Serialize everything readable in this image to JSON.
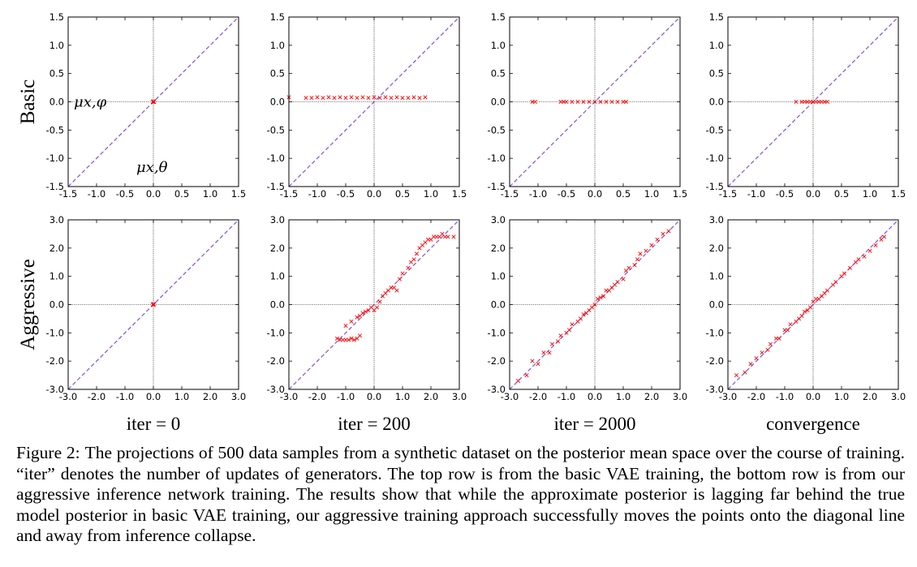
{
  "figure": {
    "row_labels": [
      "Basic",
      "Aggressive"
    ],
    "col_labels": [
      "iter = 0",
      "iter = 200",
      "iter = 2000",
      "convergence"
    ],
    "annotations": {
      "y_axis_symbol": "μx,φ",
      "x_axis_symbol": "μx,θ"
    },
    "colors": {
      "points": "#ff0000",
      "diagonal": "#8a5fd6",
      "axes": "#000000"
    }
  },
  "chart_data": [
    {
      "type": "scatter",
      "row": "Basic",
      "title": "iter = 0",
      "xlim": [
        -1.5,
        1.5
      ],
      "ylim": [
        -1.5,
        1.5
      ],
      "xticks": [
        "-1.5",
        "-1.0",
        "-0.5",
        "0.0",
        "0.5",
        "1.0",
        "1.5"
      ],
      "yticks": [
        "-1.5",
        "-1.0",
        "-0.5",
        "0.0",
        "0.5",
        "1.0",
        "1.5"
      ],
      "xlabel": "μx,θ",
      "ylabel": "μx,φ",
      "diagonal": [
        [
          -1.5,
          -1.5
        ],
        [
          1.5,
          1.5
        ]
      ],
      "points": [
        [
          0.0,
          0.0
        ],
        [
          0.01,
          0.0
        ],
        [
          -0.01,
          0.0
        ],
        [
          0.0,
          0.01
        ],
        [
          0.005,
          -0.005
        ]
      ]
    },
    {
      "type": "scatter",
      "row": "Basic",
      "title": "iter = 200",
      "xlim": [
        -1.5,
        1.5
      ],
      "ylim": [
        -1.5,
        1.5
      ],
      "xticks": [
        "-1.5",
        "-1.0",
        "-0.5",
        "0.0",
        "0.5",
        "1.0",
        "1.5"
      ],
      "yticks": [
        "-1.5",
        "-1.0",
        "-0.5",
        "0.0",
        "0.5",
        "1.0",
        "1.5"
      ],
      "diagonal": [
        [
          -1.5,
          -1.5
        ],
        [
          1.5,
          1.5
        ]
      ],
      "points": [
        [
          -1.5,
          0.08
        ],
        [
          -1.2,
          0.07
        ],
        [
          -1.1,
          0.07
        ],
        [
          -1.0,
          0.08
        ],
        [
          -0.9,
          0.07
        ],
        [
          -0.8,
          0.08
        ],
        [
          -0.7,
          0.07
        ],
        [
          -0.6,
          0.08
        ],
        [
          -0.5,
          0.07
        ],
        [
          -0.4,
          0.08
        ],
        [
          -0.3,
          0.07
        ],
        [
          -0.2,
          0.08
        ],
        [
          -0.1,
          0.07
        ],
        [
          0.0,
          0.08
        ],
        [
          0.1,
          0.07
        ],
        [
          0.2,
          0.08
        ],
        [
          0.3,
          0.07
        ],
        [
          0.4,
          0.08
        ],
        [
          0.5,
          0.07
        ],
        [
          0.6,
          0.07
        ],
        [
          0.7,
          0.08
        ],
        [
          0.8,
          0.07
        ],
        [
          0.9,
          0.08
        ]
      ]
    },
    {
      "type": "scatter",
      "row": "Basic",
      "title": "iter = 2000",
      "xlim": [
        -1.5,
        1.5
      ],
      "ylim": [
        -1.5,
        1.5
      ],
      "xticks": [
        "-1.5",
        "-1.0",
        "-0.5",
        "0.0",
        "0.5",
        "1.0",
        "1.5"
      ],
      "yticks": [
        "-1.5",
        "-1.0",
        "-0.5",
        "0.0",
        "0.5",
        "1.0",
        "1.5"
      ],
      "diagonal": [
        [
          -1.5,
          -1.5
        ],
        [
          1.5,
          1.5
        ]
      ],
      "points": [
        [
          -1.1,
          0.0
        ],
        [
          -1.05,
          0.0
        ],
        [
          -0.6,
          0.0
        ],
        [
          -0.55,
          0.0
        ],
        [
          -0.5,
          0.0
        ],
        [
          -0.4,
          0.0
        ],
        [
          -0.3,
          0.0
        ],
        [
          -0.2,
          0.0
        ],
        [
          -0.1,
          0.0
        ],
        [
          0.0,
          0.0
        ],
        [
          0.1,
          0.0
        ],
        [
          0.2,
          0.0
        ],
        [
          0.3,
          0.0
        ],
        [
          0.4,
          0.0
        ],
        [
          0.5,
          0.0
        ],
        [
          0.55,
          0.0
        ]
      ]
    },
    {
      "type": "scatter",
      "row": "Basic",
      "title": "convergence",
      "xlim": [
        -1.5,
        1.5
      ],
      "ylim": [
        -1.5,
        1.5
      ],
      "xticks": [
        "-1.5",
        "-1.0",
        "-0.5",
        "0.0",
        "0.5",
        "1.0",
        "1.5"
      ],
      "yticks": [
        "-1.5",
        "-1.0",
        "-0.5",
        "0.0",
        "0.5",
        "1.0",
        "1.5"
      ],
      "diagonal": [
        [
          -1.5,
          -1.5
        ],
        [
          1.5,
          1.5
        ]
      ],
      "points": [
        [
          -0.3,
          0.0
        ],
        [
          -0.2,
          0.0
        ],
        [
          -0.15,
          0.0
        ],
        [
          -0.1,
          0.0
        ],
        [
          -0.05,
          0.0
        ],
        [
          0.0,
          0.0
        ],
        [
          0.05,
          0.0
        ],
        [
          0.1,
          0.0
        ],
        [
          0.15,
          0.0
        ],
        [
          0.2,
          0.0
        ],
        [
          0.25,
          0.0
        ]
      ]
    },
    {
      "type": "scatter",
      "row": "Aggressive",
      "title": "iter = 0",
      "xlim": [
        -3.0,
        3.0
      ],
      "ylim": [
        -3.0,
        3.0
      ],
      "xticks": [
        "-3.0",
        "-2.0",
        "-1.0",
        "0.0",
        "1.0",
        "2.0",
        "3.0"
      ],
      "yticks": [
        "-3.0",
        "-2.0",
        "-1.0",
        "0.0",
        "1.0",
        "2.0",
        "3.0"
      ],
      "diagonal": [
        [
          -3.0,
          -3.0
        ],
        [
          3.0,
          3.0
        ]
      ],
      "points": [
        [
          0.0,
          0.0
        ],
        [
          0.02,
          0.0
        ],
        [
          -0.02,
          0.0
        ],
        [
          0.0,
          0.02
        ]
      ]
    },
    {
      "type": "scatter",
      "row": "Aggressive",
      "title": "iter = 200",
      "xlim": [
        -3.0,
        3.0
      ],
      "ylim": [
        -3.0,
        3.0
      ],
      "xticks": [
        "-3.0",
        "-2.0",
        "-1.0",
        "0.0",
        "1.0",
        "2.0",
        "3.0"
      ],
      "yticks": [
        "-3.0",
        "-2.0",
        "-1.0",
        "0.0",
        "1.0",
        "2.0",
        "3.0"
      ],
      "diagonal": [
        [
          -3.0,
          -3.0
        ],
        [
          3.0,
          3.0
        ]
      ],
      "points": [
        [
          -1.3,
          -1.2
        ],
        [
          -1.2,
          -1.25
        ],
        [
          -1.1,
          -1.25
        ],
        [
          -1.0,
          -1.25
        ],
        [
          -0.9,
          -1.25
        ],
        [
          -0.8,
          -1.2
        ],
        [
          -0.7,
          -1.25
        ],
        [
          -0.6,
          -1.2
        ],
        [
          -0.5,
          -1.1
        ],
        [
          -1.0,
          -0.75
        ],
        [
          -0.8,
          -0.6
        ],
        [
          -0.6,
          -0.45
        ],
        [
          -0.5,
          -0.4
        ],
        [
          -0.4,
          -0.3
        ],
        [
          -0.3,
          -0.25
        ],
        [
          -0.2,
          -0.2
        ],
        [
          -0.1,
          -0.1
        ],
        [
          0.0,
          -0.2
        ],
        [
          0.1,
          -0.1
        ],
        [
          0.2,
          0.1
        ],
        [
          0.3,
          0.3
        ],
        [
          0.4,
          0.4
        ],
        [
          0.5,
          0.5
        ],
        [
          0.6,
          0.6
        ],
        [
          0.7,
          0.6
        ],
        [
          0.8,
          0.5
        ],
        [
          0.9,
          0.9
        ],
        [
          1.0,
          1.1
        ],
        [
          1.2,
          1.3
        ],
        [
          1.3,
          1.5
        ],
        [
          1.4,
          1.6
        ],
        [
          1.5,
          1.8
        ],
        [
          1.6,
          2.0
        ],
        [
          1.7,
          2.1
        ],
        [
          1.8,
          2.2
        ],
        [
          1.9,
          2.3
        ],
        [
          2.0,
          2.3
        ],
        [
          2.1,
          2.4
        ],
        [
          2.2,
          2.4
        ],
        [
          2.3,
          2.4
        ],
        [
          2.4,
          2.5
        ],
        [
          2.5,
          2.4
        ],
        [
          2.6,
          2.4
        ],
        [
          2.8,
          2.4
        ]
      ]
    },
    {
      "type": "scatter",
      "row": "Aggressive",
      "title": "iter = 2000",
      "xlim": [
        -3.0,
        3.0
      ],
      "ylim": [
        -3.0,
        3.0
      ],
      "xticks": [
        "-3.0",
        "-2.0",
        "-1.0",
        "0.0",
        "1.0",
        "2.0",
        "3.0"
      ],
      "yticks": [
        "-3.0",
        "-2.0",
        "-1.0",
        "0.0",
        "1.0",
        "2.0",
        "3.0"
      ],
      "diagonal": [
        [
          -3.0,
          -3.0
        ],
        [
          3.0,
          3.0
        ]
      ],
      "points": [
        [
          -2.7,
          -2.7
        ],
        [
          -2.4,
          -2.5
        ],
        [
          -2.2,
          -2.0
        ],
        [
          -2.0,
          -2.1
        ],
        [
          -1.8,
          -1.7
        ],
        [
          -1.6,
          -1.7
        ],
        [
          -1.5,
          -1.4
        ],
        [
          -1.3,
          -1.3
        ],
        [
          -1.2,
          -1.1
        ],
        [
          -1.0,
          -1.0
        ],
        [
          -0.9,
          -0.9
        ],
        [
          -0.8,
          -0.7
        ],
        [
          -0.6,
          -0.6
        ],
        [
          -0.5,
          -0.5
        ],
        [
          -0.4,
          -0.35
        ],
        [
          -0.3,
          -0.3
        ],
        [
          -0.2,
          -0.2
        ],
        [
          -0.1,
          -0.1
        ],
        [
          0.0,
          0.0
        ],
        [
          0.1,
          0.2
        ],
        [
          0.2,
          0.25
        ],
        [
          0.3,
          0.3
        ],
        [
          0.4,
          0.5
        ],
        [
          0.5,
          0.5
        ],
        [
          0.6,
          0.6
        ],
        [
          0.7,
          0.7
        ],
        [
          0.8,
          0.8
        ],
        [
          1.0,
          0.9
        ],
        [
          1.1,
          1.2
        ],
        [
          1.2,
          1.3
        ],
        [
          1.4,
          1.4
        ],
        [
          1.5,
          1.6
        ],
        [
          1.6,
          1.8
        ],
        [
          1.8,
          1.9
        ],
        [
          2.0,
          2.1
        ],
        [
          2.2,
          2.3
        ],
        [
          2.4,
          2.5
        ],
        [
          2.6,
          2.6
        ]
      ]
    },
    {
      "type": "scatter",
      "row": "Aggressive",
      "title": "convergence",
      "xlim": [
        -3.0,
        3.0
      ],
      "ylim": [
        -3.0,
        3.0
      ],
      "xticks": [
        "-3.0",
        "-2.0",
        "-1.0",
        "0.0",
        "1.0",
        "2.0",
        "3.0"
      ],
      "yticks": [
        "-3.0",
        "-2.0",
        "-1.0",
        "0.0",
        "1.0",
        "2.0",
        "3.0"
      ],
      "diagonal": [
        [
          -3.0,
          -3.0
        ],
        [
          3.0,
          3.0
        ]
      ],
      "points": [
        [
          -2.7,
          -2.5
        ],
        [
          -2.4,
          -2.4
        ],
        [
          -2.2,
          -2.1
        ],
        [
          -2.0,
          -1.9
        ],
        [
          -1.8,
          -1.7
        ],
        [
          -1.6,
          -1.6
        ],
        [
          -1.5,
          -1.4
        ],
        [
          -1.3,
          -1.2
        ],
        [
          -1.2,
          -1.2
        ],
        [
          -1.0,
          -0.9
        ],
        [
          -0.9,
          -0.9
        ],
        [
          -0.8,
          -0.7
        ],
        [
          -0.6,
          -0.6
        ],
        [
          -0.5,
          -0.5
        ],
        [
          -0.4,
          -0.4
        ],
        [
          -0.3,
          -0.25
        ],
        [
          -0.2,
          -0.2
        ],
        [
          -0.1,
          -0.1
        ],
        [
          0.0,
          0.1
        ],
        [
          0.1,
          0.2
        ],
        [
          0.2,
          0.2
        ],
        [
          0.3,
          0.3
        ],
        [
          0.4,
          0.4
        ],
        [
          0.5,
          0.5
        ],
        [
          0.7,
          0.7
        ],
        [
          0.8,
          0.8
        ],
        [
          1.0,
          1.0
        ],
        [
          1.1,
          1.1
        ],
        [
          1.3,
          1.3
        ],
        [
          1.5,
          1.5
        ],
        [
          1.6,
          1.6
        ],
        [
          1.8,
          1.7
        ],
        [
          2.0,
          1.9
        ],
        [
          2.2,
          2.1
        ],
        [
          2.4,
          2.3
        ],
        [
          2.5,
          2.4
        ]
      ]
    }
  ],
  "caption": {
    "lead": "Figure 2:",
    "text": "The projections of 500 data samples from a synthetic dataset on the posterior mean space over the course of training. “iter” denotes the number of updates of generators. The top row is from the basic VAE training, the bottom row is from our aggressive inference network training. The results show that while the approximate posterior is lagging far behind the true model posterior in basic VAE training, our aggressive training approach successfully moves the points onto the diagonal line and away from inference collapse."
  }
}
